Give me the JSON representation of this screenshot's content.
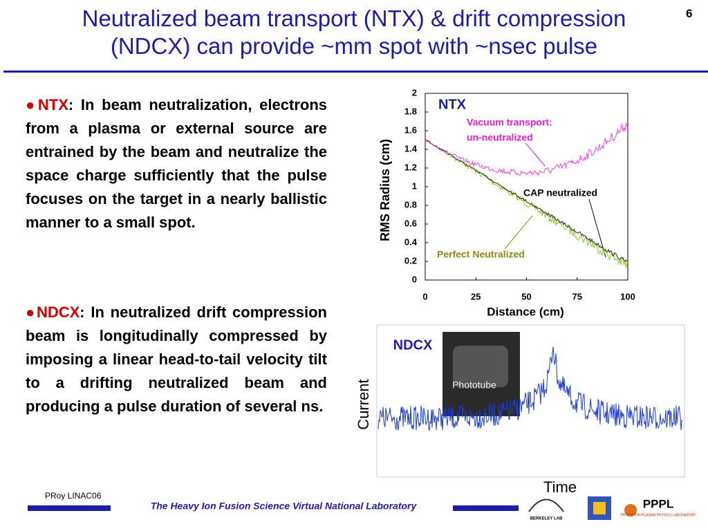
{
  "header": {
    "title_line1": "Neutralized beam transport (NTX) & drift compression",
    "title_line2": "(NDCX) can provide ~mm spot with ~nsec pulse",
    "slide_number": "6"
  },
  "body": {
    "paragraphs": [
      {
        "bullet": "●",
        "lead": "NTX",
        "colon": ":",
        "text": " In beam neutralization, electrons from a plasma or external source are entrained by the beam and neutralize the space charge sufficiently that the pulse focuses on the target in a nearly ballistic manner to a small spot."
      },
      {
        "bullet": "●",
        "lead": "NDCX",
        "colon": ":",
        "text": " In neutralized drift compression beam is longitudinally compressed by imposing a linear head-to-tail velocity tilt to a drifting neutralized beam and producing a pulse duration  of several ns."
      }
    ]
  },
  "ntx_plot": {
    "label": "NTX",
    "x_label": "Distance (cm)",
    "y_label": "RMS Radius (cm)",
    "xlim": [
      0,
      100
    ],
    "xticks": [
      0,
      25,
      50,
      75,
      100
    ],
    "ylim": [
      0,
      2
    ],
    "yticks": [
      0,
      0.2,
      0.4,
      0.6,
      0.8,
      1,
      1.2,
      1.4,
      1.6,
      1.8,
      2
    ],
    "annotations": [
      "Vacuum transport:",
      "un-neutralized",
      "CAP neutralized",
      "Perfect Neutralized"
    ]
  },
  "ndcx_plot": {
    "label": "NDCX",
    "photo_label": "Phototube",
    "y_label": "Current",
    "x_label": "Time"
  },
  "footer": {
    "author": "PRoy LINAC06",
    "lab": "The Heavy Ion Fusion Science Virtual National Laboratory",
    "logo_berkeley": "BERKELEY LAB",
    "logo_pppl": "PPPL",
    "logo_pppl_sub": "PRINCETON PLASMA PHYSICS LABORATORY"
  }
}
